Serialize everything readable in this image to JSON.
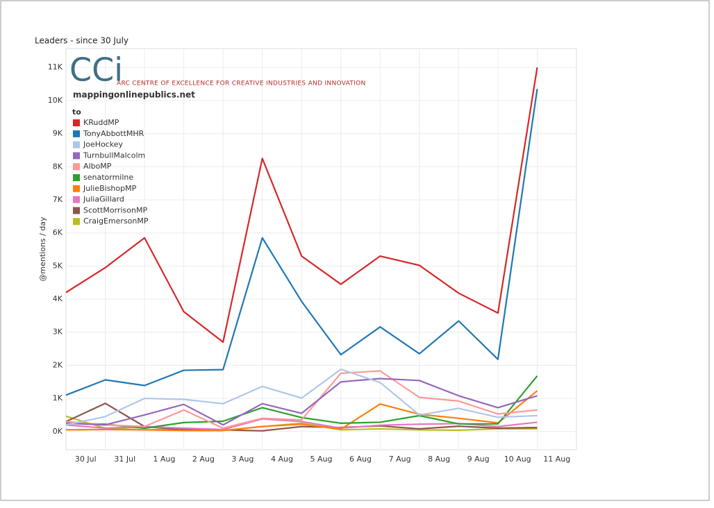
{
  "chart_data": {
    "type": "line",
    "title": "Leaders - since 30 July",
    "logo": {
      "mark": "CCi",
      "name": "ARC CENTRE OF EXCELLENCE FOR CREATIVE INDUSTRIES AND INNOVATION",
      "site": "mappingonlinepublics.net"
    },
    "y_label": "@mentions / day",
    "legend_title": "to",
    "categories": [
      "30 Jul",
      "31 Jul",
      "1 Aug",
      "2 Aug",
      "3 Aug",
      "4 Aug",
      "5 Aug",
      "6 Aug",
      "7 Aug",
      "8 Aug",
      "9 Aug",
      "10 Aug",
      "11 Aug"
    ],
    "ylim": [
      -550,
      11570
    ],
    "yticks": [
      {
        "value": 0,
        "label": "0K"
      },
      {
        "value": 1000,
        "label": "1K"
      },
      {
        "value": 2000,
        "label": "2K"
      },
      {
        "value": 3000,
        "label": "3K"
      },
      {
        "value": 4000,
        "label": "4K"
      },
      {
        "value": 5000,
        "label": "5K"
      },
      {
        "value": 6000,
        "label": "6K"
      },
      {
        "value": 7000,
        "label": "7K"
      },
      {
        "value": 8000,
        "label": "8K"
      },
      {
        "value": 9000,
        "label": "9K"
      },
      {
        "value": 10000,
        "label": "10K"
      },
      {
        "value": 11000,
        "label": "11K"
      }
    ],
    "grid": true,
    "series": [
      {
        "name": "KRuddMP",
        "color": "#d62728",
        "values": [
          4200,
          4950,
          5850,
          3620,
          2700,
          8250,
          5300,
          4450,
          5300,
          5020,
          4180,
          3580,
          11000
        ]
      },
      {
        "name": "TonyAbbottMHR",
        "color": "#1f77b4",
        "values": [
          1100,
          1560,
          1390,
          1850,
          1870,
          5850,
          3930,
          2320,
          3160,
          2350,
          3340,
          2180,
          10350
        ]
      },
      {
        "name": "JoeHockey",
        "color": "#aec7e8",
        "values": [
          200,
          450,
          1000,
          970,
          840,
          1360,
          1010,
          1880,
          1480,
          500,
          700,
          430,
          480
        ]
      },
      {
        "name": "TurnbullMalcolm",
        "color": "#9467bd",
        "values": [
          250,
          200,
          500,
          820,
          200,
          840,
          550,
          1500,
          1600,
          1540,
          1080,
          720,
          1080
        ]
      },
      {
        "name": "AlboMP",
        "color": "#ff9896",
        "values": [
          300,
          200,
          150,
          650,
          100,
          400,
          350,
          1760,
          1830,
          1030,
          920,
          530,
          650
        ]
      },
      {
        "name": "senatormilne",
        "color": "#2ca02c",
        "values": [
          250,
          220,
          100,
          270,
          310,
          720,
          420,
          250,
          280,
          480,
          230,
          230,
          1680
        ]
      },
      {
        "name": "JulieBishopMP",
        "color": "#ff7f0e",
        "values": [
          50,
          60,
          50,
          30,
          30,
          150,
          220,
          70,
          830,
          520,
          400,
          260,
          1230
        ]
      },
      {
        "name": "JuliaGillard",
        "color": "#e377c2",
        "values": [
          200,
          100,
          150,
          100,
          60,
          380,
          300,
          100,
          190,
          220,
          240,
          150,
          280
        ]
      },
      {
        "name": "ScottMorrisonMP",
        "color": "#8c564b",
        "values": [
          300,
          850,
          150,
          50,
          50,
          20,
          150,
          120,
          170,
          80,
          160,
          100,
          120
        ]
      },
      {
        "name": "CraigEmersonMP",
        "color": "#bcbd22",
        "values": [
          460,
          100,
          50,
          80,
          30,
          150,
          250,
          50,
          80,
          50,
          40,
          80,
          80
        ]
      }
    ]
  }
}
